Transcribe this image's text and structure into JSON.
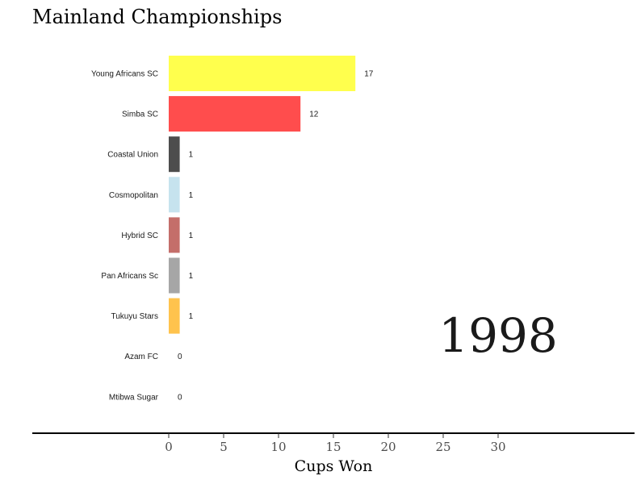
{
  "chart_data": {
    "type": "bar",
    "orientation": "horizontal",
    "title": "Mainland Championships",
    "xlabel": "Cups Won",
    "ylabel": "",
    "frame_label": "1998",
    "xlim": [
      0,
      30
    ],
    "xticks": [
      0,
      5,
      10,
      15,
      20,
      25,
      30
    ],
    "grid": false,
    "categories": [
      "Young Africans SC",
      "Simba SC",
      "Coastal Union",
      "Cosmopolitan",
      "Hybrid SC",
      "Pan Africans Sc",
      "Tukuyu Stars",
      "Azam FC",
      "Mtibwa Sugar"
    ],
    "values": [
      17,
      12,
      1,
      1,
      1,
      1,
      1,
      0,
      0
    ],
    "colors": [
      "#ffff4d",
      "#ff4d4d",
      "#4d4d4d",
      "#c6e3ee",
      "#c46e6a",
      "#a6a6a6",
      "#ffc34d",
      "#4f81bd",
      "#3f9f4f"
    ]
  }
}
